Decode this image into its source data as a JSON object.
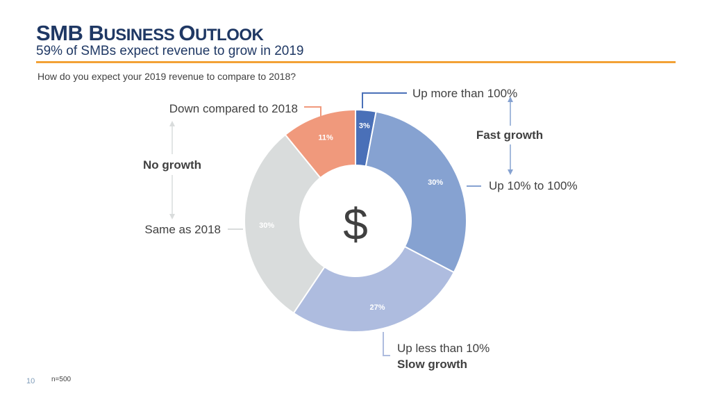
{
  "slide": {
    "title_parts": [
      {
        "cap": "SMB ",
        "rest": ""
      },
      {
        "cap": "B",
        "rest": "USINESS "
      },
      {
        "cap": "O",
        "rest": "UTLOOK"
      }
    ],
    "subtitle": "59% of SMBs expect revenue to grow in 2019",
    "question": "How do you expect your 2019 revenue to compare to 2018?",
    "page_number": "10",
    "sample_note": "n=500",
    "accent_color": "#f3a236",
    "title_color": "#1f3864"
  },
  "chart_data": {
    "type": "pie",
    "subtype": "donut",
    "center_label": "$",
    "categories": [
      "Up more than 100%",
      "Up 10% to 100%",
      "Up less than 10%",
      "Same as 2018",
      "Down compared to 2018"
    ],
    "values": [
      3,
      30,
      27,
      30,
      11
    ],
    "value_labels": [
      "3%",
      "30%",
      "27%",
      "30%",
      "11%"
    ],
    "colors": [
      "#4a70b8",
      "#86a2d1",
      "#aebcdf",
      "#d9dcdc",
      "#f0997c"
    ],
    "groups": [
      {
        "label": "Fast growth",
        "members": [
          "Up more than 100%",
          "Up 10% to 100%"
        ]
      },
      {
        "label": "Slow growth",
        "members": [
          "Up less than 10%"
        ]
      },
      {
        "label": "No growth",
        "members": [
          "Same as 2018",
          "Down compared to 2018"
        ]
      }
    ]
  }
}
